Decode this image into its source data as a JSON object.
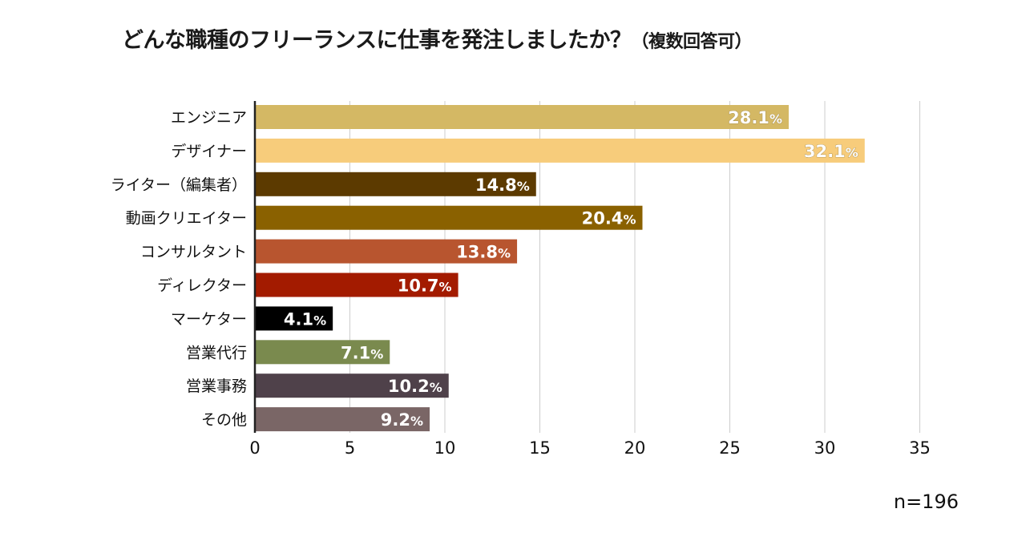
{
  "title": {
    "main": "どんな職種のフリーランスに仕事を発注しましたか？",
    "sub": "（複数回答可）"
  },
  "note": "n=196",
  "chart_data": {
    "type": "bar",
    "orientation": "horizontal",
    "title": "どんな職種のフリーランスに仕事を発注しましたか？（複数回答可）",
    "categories": [
      "エンジニア",
      "デザイナー",
      "ライター（編集者）",
      "動画クリエイター",
      "コンサルタント",
      "ディレクター",
      "マーケター",
      "営業代行",
      "営業事務",
      "その他"
    ],
    "values": [
      28.1,
      32.1,
      14.8,
      20.4,
      13.8,
      10.7,
      4.1,
      7.1,
      10.2,
      9.2
    ],
    "colors": [
      "#d4b864",
      "#f7cc7b",
      "#5c3a00",
      "#8a6100",
      "#b8552f",
      "#a31b00",
      "#000000",
      "#7a8a4e",
      "#4f414a",
      "#7a6666"
    ],
    "unit": "%",
    "xlim": [
      0,
      35
    ],
    "xticks": [
      0,
      5,
      10,
      15,
      20,
      25,
      30,
      35
    ],
    "grid": true,
    "xlabel": "",
    "ylabel": ""
  }
}
